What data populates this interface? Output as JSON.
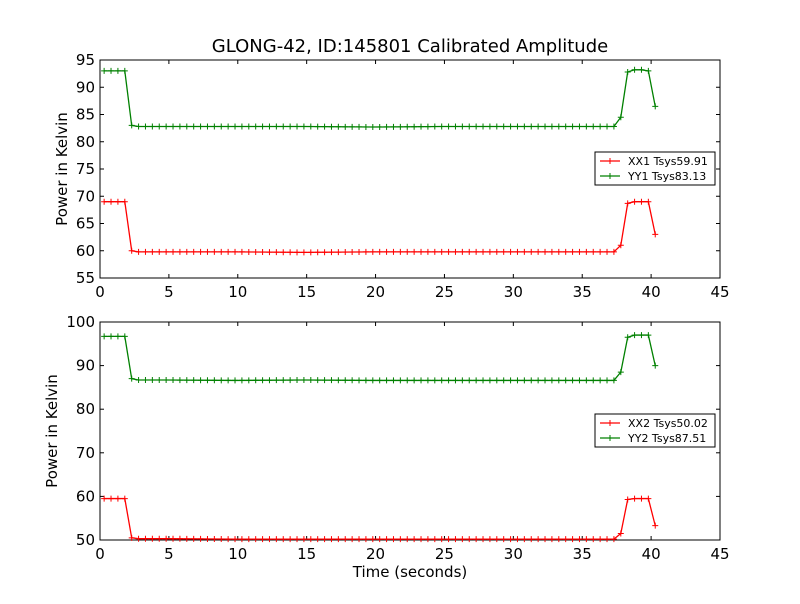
{
  "chart_data": [
    {
      "type": "line",
      "title": "GLONG-42, ID:145801 Calibrated Amplitude",
      "xlabel": "",
      "ylabel": "Power in Kelvin",
      "xlim": [
        0,
        45
      ],
      "ylim": [
        55,
        95
      ],
      "xticks": [
        "0",
        "5",
        "10",
        "15",
        "20",
        "25",
        "30",
        "35",
        "40",
        "45"
      ],
      "yticks": [
        "55",
        "60",
        "65",
        "70",
        "75",
        "80",
        "85",
        "90",
        "95"
      ],
      "legend_position": "right",
      "grid": false,
      "series": [
        {
          "name": "XX1 Tsys59.91",
          "color": "#ff0000",
          "marker": "+",
          "x": [
            0.3,
            0.8,
            1.3,
            1.8,
            2.3,
            2.8,
            3.3,
            4.8,
            9.8,
            14.8,
            19.8,
            24.8,
            29.8,
            34.8,
            37.3,
            37.8,
            38.3,
            38.8,
            39.3,
            39.8,
            40.3
          ],
          "y": [
            69,
            69,
            69,
            69,
            60,
            59.8,
            59.8,
            59.8,
            59.8,
            59.7,
            59.8,
            59.8,
            59.8,
            59.8,
            59.8,
            61,
            68.7,
            69,
            69,
            69,
            63
          ]
        },
        {
          "name": "YY1 Tsys83.13",
          "color": "#008000",
          "marker": "+",
          "x": [
            0.3,
            0.8,
            1.3,
            1.8,
            2.3,
            2.8,
            3.3,
            4.8,
            9.8,
            14.8,
            19.8,
            24.8,
            29.8,
            34.8,
            37.3,
            37.8,
            38.3,
            38.8,
            39.3,
            39.8,
            40.3
          ],
          "y": [
            93,
            93,
            93,
            93,
            83,
            82.8,
            82.8,
            82.8,
            82.8,
            82.8,
            82.7,
            82.8,
            82.8,
            82.8,
            82.8,
            84.5,
            92.8,
            93.2,
            93.2,
            93,
            86.5
          ]
        }
      ]
    },
    {
      "type": "line",
      "title": "",
      "xlabel": "Time (seconds)",
      "ylabel": "Power in Kelvin",
      "xlim": [
        0,
        45
      ],
      "ylim": [
        50,
        100
      ],
      "xticks": [
        "0",
        "5",
        "10",
        "15",
        "20",
        "25",
        "30",
        "35",
        "40",
        "45"
      ],
      "yticks": [
        "50",
        "60",
        "70",
        "80",
        "90",
        "100"
      ],
      "legend_position": "right",
      "grid": false,
      "series": [
        {
          "name": "XX2 Tsys50.02",
          "color": "#ff0000",
          "marker": "+",
          "x": [
            0.3,
            0.8,
            1.3,
            1.8,
            2.3,
            2.8,
            3.3,
            4.8,
            9.8,
            14.8,
            19.8,
            24.8,
            29.8,
            34.8,
            37.3,
            37.8,
            38.3,
            38.8,
            39.3,
            39.8,
            40.3
          ],
          "y": [
            59.5,
            59.5,
            59.5,
            59.5,
            50.5,
            50.3,
            50.3,
            50.3,
            50.2,
            50.2,
            50.2,
            50.2,
            50.2,
            50.2,
            50.2,
            51.5,
            59.3,
            59.5,
            59.5,
            59.5,
            53.3
          ]
        },
        {
          "name": "YY2 Tsys87.51",
          "color": "#008000",
          "marker": "+",
          "x": [
            0.3,
            0.8,
            1.3,
            1.8,
            2.3,
            2.8,
            3.3,
            4.8,
            9.8,
            14.8,
            19.8,
            24.8,
            29.8,
            34.8,
            37.3,
            37.8,
            38.3,
            38.8,
            39.3,
            39.8,
            40.3
          ],
          "y": [
            96.7,
            96.7,
            96.7,
            96.7,
            87,
            86.7,
            86.7,
            86.7,
            86.6,
            86.7,
            86.6,
            86.6,
            86.6,
            86.6,
            86.6,
            88.5,
            96.5,
            97,
            97,
            97,
            90
          ]
        }
      ]
    }
  ]
}
